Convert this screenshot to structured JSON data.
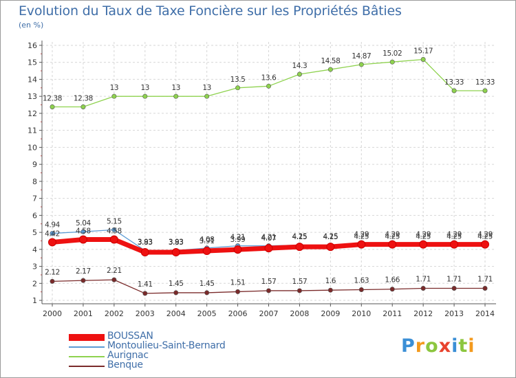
{
  "title": "Evolution du Taux de Taxe Foncière sur les Propriétés Bâties",
  "unit_label": "(en %)",
  "logo_text": [
    "P",
    "r",
    "o",
    "x",
    "i",
    "t",
    "i"
  ],
  "logo_colors": [
    "#3b8fd6",
    "#f39a1e",
    "#8cc63f",
    "#e8432e",
    "#3b8fd6",
    "#8cc63f",
    "#f39a1e"
  ],
  "chart_data": {
    "type": "line",
    "title": "Evolution du Taux de Taxe Foncière sur les Propriétés Bâties",
    "ylabel": "(en %)",
    "ylim": [
      0.8,
      16.2
    ],
    "yticks": [
      1,
      2,
      3,
      4,
      5,
      6,
      7,
      8,
      9,
      10,
      11,
      12,
      13,
      14,
      15,
      16
    ],
    "x": [
      "2000",
      "2001",
      "2002",
      "2003",
      "2004",
      "2005",
      "2006",
      "2007",
      "2008",
      "2009",
      "2010",
      "2011",
      "2012",
      "2013",
      "2014"
    ],
    "series": [
      {
        "name": "BOUSSAN",
        "color": "#ee1111",
        "width": 7,
        "values": [
          4.42,
          4.58,
          4.58,
          3.83,
          3.83,
          3.91,
          3.99,
          4.07,
          4.15,
          4.15,
          4.29,
          4.29,
          4.29,
          4.29,
          4.29
        ],
        "labels": [
          "4.42",
          "4.58",
          "4.58",
          "3.83",
          "3.83",
          "3.91",
          "3.99",
          "4.07",
          "4.15",
          "4.15",
          "4.29",
          "4.29",
          "4.29",
          "4.29",
          "4.29"
        ]
      },
      {
        "name": "Montoulieu-Saint-Bernard",
        "color": "#5b9bd5",
        "width": 1.3,
        "values": [
          4.94,
          5.04,
          5.15,
          3.93,
          3.93,
          4.08,
          4.21,
          4.21,
          4.25,
          4.25,
          4.25,
          4.25,
          4.25,
          4.25,
          4.25
        ],
        "labels": [
          "4.94",
          "5.04",
          "5.15",
          "3.93",
          "3.93",
          "4.08",
          "4.21",
          "4.21",
          "4.25",
          "4.25",
          "4.25",
          "4.25",
          "4.25",
          "4.25",
          "4.25"
        ]
      },
      {
        "name": "Aurignac",
        "color": "#8ed24e",
        "width": 1.3,
        "values": [
          12.38,
          12.38,
          13,
          13,
          13,
          13,
          13.5,
          13.6,
          14.3,
          14.58,
          14.87,
          15.02,
          15.17,
          13.33,
          13.33
        ],
        "labels": [
          "12.38",
          "12.38",
          "13",
          "13",
          "13",
          "13",
          "13.5",
          "13.6",
          "14.3",
          "14.58",
          "14.87",
          "15.02",
          "15.17",
          "13.33",
          "13.33"
        ]
      },
      {
        "name": "Benque",
        "color": "#7a2a2a",
        "width": 1.3,
        "values": [
          2.12,
          2.17,
          2.21,
          1.41,
          1.45,
          1.45,
          1.51,
          1.57,
          1.57,
          1.6,
          1.63,
          1.66,
          1.71,
          1.71,
          1.71
        ],
        "labels": [
          "2.12",
          "2.17",
          "2.21",
          "1.41",
          "1.45",
          "1.45",
          "1.51",
          "1.57",
          "1.57",
          "1.6",
          "1.63",
          "1.66",
          "1.71",
          "1.71",
          "1.71"
        ]
      }
    ],
    "legend": [
      "BOUSSAN",
      "Montoulieu-Saint-Bernard",
      "Aurignac",
      "Benque"
    ],
    "legend_position": "bottom-left",
    "grid": true
  }
}
